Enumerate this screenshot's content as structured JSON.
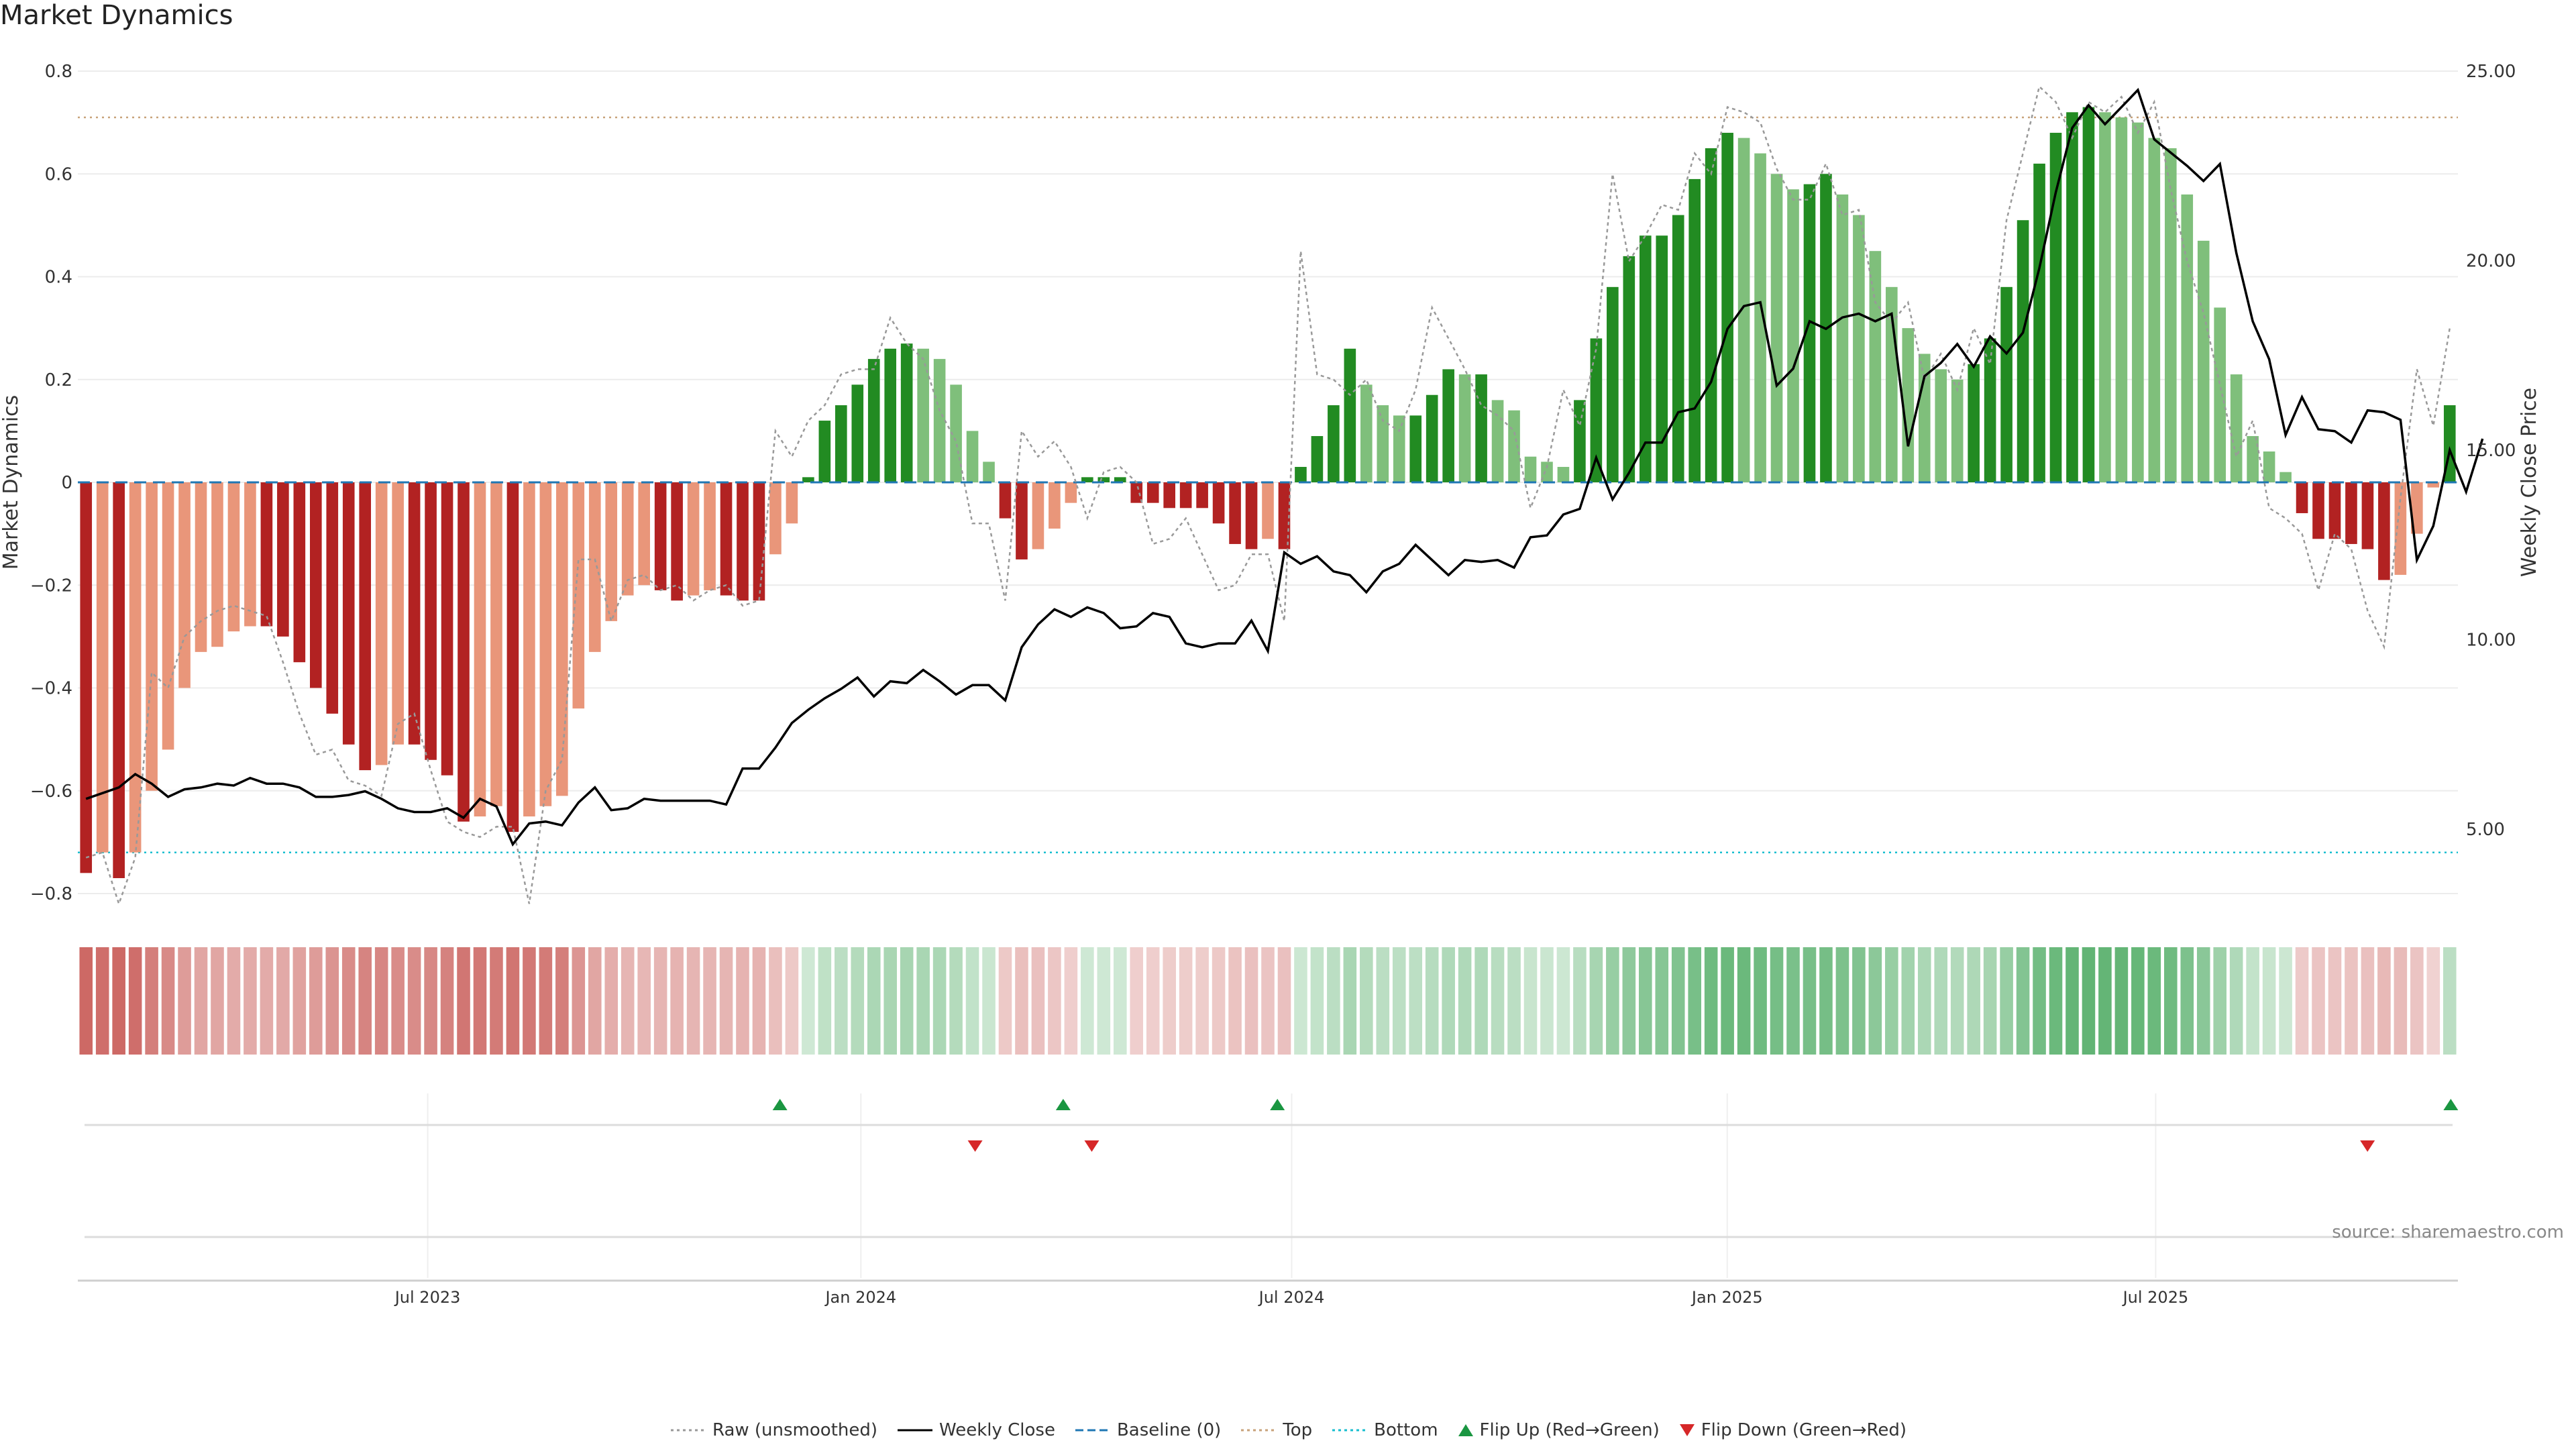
{
  "title": "Market Dynamics",
  "source": "source: sharemaestro.com",
  "chart_data": {
    "type": "bar",
    "left_axis": {
      "label": "Market Dynamics",
      "ticks": [
        "0.8",
        "0.6",
        "0.4",
        "0.2",
        "0",
        "−0.2",
        "−0.4",
        "−0.6",
        "−0.8"
      ],
      "range": [
        -0.8,
        0.8
      ]
    },
    "right_axis": {
      "label": "Weekly Close Price",
      "ticks": [
        "25.00",
        "20.00",
        "15.00",
        "10.00",
        "5.00"
      ],
      "range": [
        3.3,
        25.0
      ]
    },
    "x_ticks": [
      "Jul 2023",
      "Jan 2024",
      "Jul 2024",
      "Jan 2025",
      "Jul 2025"
    ],
    "top_level": 0.71,
    "bottom_level": -0.72,
    "series": [
      {
        "name": "Market Dynamics",
        "values": [
          -0.76,
          -0.72,
          -0.77,
          -0.72,
          -0.6,
          -0.52,
          -0.4,
          -0.33,
          -0.32,
          -0.29,
          -0.28,
          -0.28,
          -0.3,
          -0.35,
          -0.4,
          -0.45,
          -0.51,
          -0.56,
          -0.55,
          -0.51,
          -0.51,
          -0.54,
          -0.57,
          -0.66,
          -0.65,
          -0.63,
          -0.68,
          -0.65,
          -0.63,
          -0.61,
          -0.44,
          -0.33,
          -0.27,
          -0.22,
          -0.2,
          -0.21,
          -0.23,
          -0.22,
          -0.21,
          -0.22,
          -0.23,
          -0.23,
          -0.14,
          -0.08,
          0.01,
          0.12,
          0.15,
          0.19,
          0.24,
          0.26,
          0.27,
          0.26,
          0.24,
          0.19,
          0.1,
          0.04,
          -0.07,
          -0.15,
          -0.13,
          -0.09,
          -0.04,
          0.01,
          0.01,
          0.01,
          -0.04,
          -0.04,
          -0.05,
          -0.05,
          -0.05,
          -0.08,
          -0.12,
          -0.13,
          -0.11,
          -0.13,
          0.03,
          0.09,
          0.15,
          0.26,
          0.19,
          0.15,
          0.13,
          0.13,
          0.17,
          0.22,
          0.21,
          0.21,
          0.16,
          0.14,
          0.05,
          0.04,
          0.03,
          0.16,
          0.28,
          0.38,
          0.44,
          0.48,
          0.48,
          0.52,
          0.59,
          0.65,
          0.68,
          0.67,
          0.64,
          0.6,
          0.57,
          0.58,
          0.6,
          0.56,
          0.52,
          0.45,
          0.38,
          0.3,
          0.25,
          0.22,
          0.2,
          0.23,
          0.28,
          0.38,
          0.51,
          0.62,
          0.68,
          0.72,
          0.73,
          0.72,
          0.71,
          0.7,
          0.67,
          0.65,
          0.56,
          0.47,
          0.34,
          0.21,
          0.09,
          0.06,
          0.02,
          -0.06,
          -0.11,
          -0.11,
          -0.12,
          -0.13,
          -0.19,
          -0.18,
          -0.1,
          -0.01,
          0.15
        ]
      },
      {
        "name": "Raw (unsmoothed)",
        "values": [
          -0.73,
          -0.72,
          -0.82,
          -0.73,
          -0.37,
          -0.4,
          -0.3,
          -0.27,
          -0.25,
          -0.24,
          -0.25,
          -0.26,
          -0.35,
          -0.45,
          -0.53,
          -0.52,
          -0.58,
          -0.59,
          -0.61,
          -0.47,
          -0.45,
          -0.56,
          -0.66,
          -0.68,
          -0.69,
          -0.67,
          -0.67,
          -0.82,
          -0.6,
          -0.54,
          -0.15,
          -0.15,
          -0.27,
          -0.19,
          -0.18,
          -0.21,
          -0.2,
          -0.23,
          -0.21,
          -0.2,
          -0.24,
          -0.23,
          0.1,
          0.05,
          0.12,
          0.15,
          0.21,
          0.22,
          0.22,
          0.32,
          0.27,
          0.24,
          0.14,
          0.08,
          -0.08,
          -0.08,
          -0.23,
          0.1,
          0.05,
          0.08,
          0.03,
          -0.07,
          0.02,
          0.03,
          0.0,
          -0.12,
          -0.11,
          -0.07,
          -0.14,
          -0.21,
          -0.2,
          -0.14,
          -0.14,
          -0.27,
          0.45,
          0.21,
          0.2,
          0.17,
          0.2,
          0.12,
          0.1,
          0.18,
          0.34,
          0.28,
          0.22,
          0.15,
          0.13,
          0.1,
          -0.05,
          0.03,
          0.18,
          0.11,
          0.26,
          0.6,
          0.43,
          0.48,
          0.54,
          0.53,
          0.64,
          0.6,
          0.73,
          0.72,
          0.7,
          0.61,
          0.55,
          0.55,
          0.62,
          0.52,
          0.53,
          0.35,
          0.31,
          0.35,
          0.2,
          0.25,
          0.18,
          0.3,
          0.23,
          0.51,
          0.64,
          0.77,
          0.74,
          0.67,
          0.74,
          0.72,
          0.75,
          0.68,
          0.74,
          0.57,
          0.43,
          0.33,
          0.19,
          0.05,
          0.12,
          -0.05,
          -0.07,
          -0.1,
          -0.21,
          -0.1,
          -0.13,
          -0.25,
          -0.32,
          -0.03,
          0.22,
          0.11,
          0.3
        ]
      },
      {
        "name": "Weekly Close",
        "values": [
          5.8,
          5.95,
          6.1,
          6.45,
          6.2,
          5.85,
          6.05,
          6.1,
          6.2,
          6.15,
          6.35,
          6.2,
          6.2,
          6.1,
          5.85,
          5.85,
          5.9,
          6.0,
          5.8,
          5.55,
          5.45,
          5.45,
          5.55,
          5.3,
          5.8,
          5.6,
          4.6,
          5.15,
          5.2,
          5.1,
          5.7,
          6.1,
          5.5,
          5.55,
          5.8,
          5.75,
          5.75,
          5.75,
          5.75,
          5.65,
          6.6,
          6.6,
          7.15,
          7.8,
          8.15,
          8.45,
          8.7,
          9.0,
          8.5,
          8.9,
          8.85,
          9.2,
          8.9,
          8.55,
          8.8,
          8.8,
          8.4,
          9.8,
          10.4,
          10.8,
          10.6,
          10.85,
          10.7,
          10.3,
          10.35,
          10.7,
          10.6,
          9.9,
          9.8,
          9.9,
          9.9,
          10.5,
          9.7,
          12.3,
          12.0,
          12.2,
          11.8,
          11.7,
          11.25,
          11.8,
          12.0,
          12.5,
          12.1,
          11.7,
          12.1,
          12.05,
          12.1,
          11.9,
          12.7,
          12.75,
          13.3,
          13.45,
          14.8,
          13.7,
          14.4,
          15.2,
          15.2,
          16.0,
          16.1,
          16.8,
          18.2,
          18.8,
          18.9,
          16.7,
          17.15,
          18.4,
          18.2,
          18.5,
          18.6,
          18.4,
          18.6,
          15.1,
          16.95,
          17.3,
          17.8,
          17.2,
          18.0,
          17.55,
          18.1,
          19.8,
          21.8,
          23.5,
          24.1,
          23.6,
          24.05,
          24.5,
          23.2,
          22.85,
          22.5,
          22.1,
          22.55,
          20.2,
          18.4,
          17.4,
          15.4,
          16.4,
          15.55,
          15.5,
          15.2,
          16.05,
          16.0,
          15.8,
          12.1,
          13.0,
          15.0,
          13.9,
          15.3
        ]
      }
    ],
    "flip_up": [
      0.295,
      0.414,
      0.504,
      0.997
    ],
    "flip_down": [
      0.377,
      0.426,
      0.962
    ],
    "legend": [
      {
        "label": "Raw (unsmoothed)",
        "kind": "dotted-line",
        "color": "#999999"
      },
      {
        "label": "Weekly Close",
        "kind": "line",
        "color": "#000000"
      },
      {
        "label": "Baseline (0)",
        "kind": "dashed-line",
        "color": "#1f77b4"
      },
      {
        "label": "Top",
        "kind": "dotted-line",
        "color": "#c8a27a"
      },
      {
        "label": "Bottom",
        "kind": "dotted-line",
        "color": "#17becf"
      },
      {
        "label": "Flip Up (Red→Green)",
        "kind": "triangle-up",
        "color": "#1a9641"
      },
      {
        "label": "Flip Down (Green→Red)",
        "kind": "triangle-down",
        "color": "#d62728"
      }
    ],
    "colors": {
      "dark_green": "#228b22",
      "light_green": "#7fbf7b",
      "dark_red": "#b22222",
      "light_red": "#e9967a"
    }
  }
}
